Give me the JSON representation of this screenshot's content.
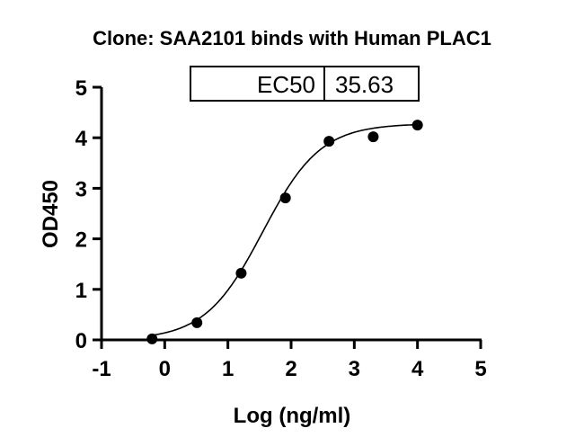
{
  "chart_data": {
    "type": "scatter",
    "title": "Clone: SAA2101 binds with Human PLAC1",
    "xlabel": "Log (ng/ml)",
    "ylabel": "OD450",
    "xlim": [
      -1,
      5
    ],
    "ylim": [
      0,
      5
    ],
    "xticks": [
      "-1",
      "0",
      "1",
      "2",
      "3",
      "4",
      "5"
    ],
    "yticks": [
      "0",
      "1",
      "2",
      "3",
      "4",
      "5"
    ],
    "grid": false,
    "points": [
      {
        "x": -0.2,
        "y": 0.02
      },
      {
        "x": 0.51,
        "y": 0.34
      },
      {
        "x": 1.21,
        "y": 1.32
      },
      {
        "x": 1.91,
        "y": 2.81
      },
      {
        "x": 2.6,
        "y": 3.93
      },
      {
        "x": 3.3,
        "y": 4.02
      },
      {
        "x": 4.0,
        "y": 4.25
      }
    ],
    "fit": {
      "model": "4PL sigmoidal",
      "bottom": 0.0,
      "top": 4.28,
      "log_ec50": 1.552,
      "hill": 0.95
    },
    "table": {
      "label": "EC50",
      "value": "35.63"
    },
    "color": "#000000"
  }
}
